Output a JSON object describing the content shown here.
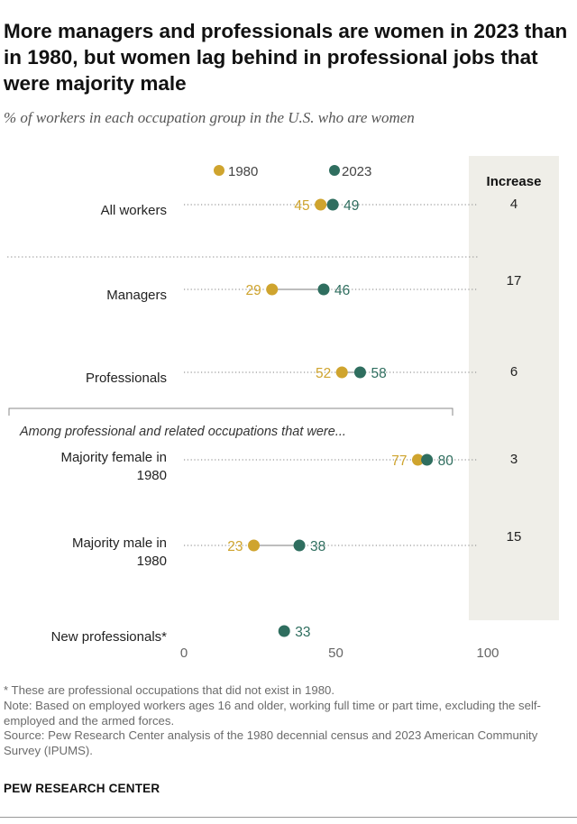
{
  "title": "More managers and professionals are women in 2023 than in 1980, but women lag behind in professional jobs that were majority male",
  "subtitle": "% of workers in each occupation group in the U.S. who are women",
  "chart_data": {
    "type": "dot",
    "series": [
      {
        "name": "1980",
        "color": "#cfa42e"
      },
      {
        "name": "2023",
        "color": "#2f6e5f"
      }
    ],
    "increase_header": "Increase",
    "section_label": "Among professional and related occupations that were...",
    "rows": [
      {
        "label": [
          "All workers"
        ],
        "v1980": 45,
        "v2023": 49,
        "increase": "4"
      },
      {
        "label": [
          "Managers"
        ],
        "v1980": 29,
        "v2023": 46,
        "increase": "17"
      },
      {
        "label": [
          "Professionals"
        ],
        "v1980": 52,
        "v2023": 58,
        "increase": "6"
      },
      {
        "label": [
          "Majority female in",
          "1980"
        ],
        "v1980": 77,
        "v2023": 80,
        "increase": "3"
      },
      {
        "label": [
          "Majority male in",
          "1980"
        ],
        "v1980": 23,
        "v2023": 38,
        "increase": "15"
      },
      {
        "label": [
          "New professionals*"
        ],
        "v1980": null,
        "v2023": 33,
        "increase": ""
      }
    ],
    "xlim": [
      0,
      100
    ],
    "xticks": [
      "0",
      "50",
      "100"
    ]
  },
  "footnote": "* These are professional occupations that did not exist in 1980.",
  "note": "Note: Based on employed workers ages 16 and older, working full time or part time, excluding the self-employed and the armed forces.",
  "source": "Source: Pew Research Center analysis of the 1980 decennial census and 2023 American Community Survey (IPUMS).",
  "brand": "PEW RESEARCH CENTER"
}
